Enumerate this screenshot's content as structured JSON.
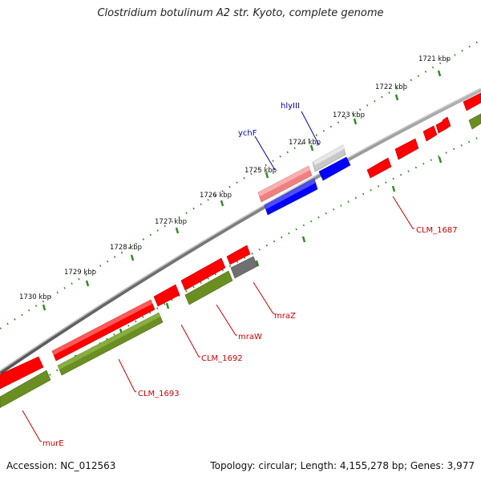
{
  "title": "Clostridium botulinum A2 str. Kyoto, complete genome",
  "footer": {
    "accession": "Accession: NC_012563",
    "summary": "Topology: circular; Length: 4,155,278 bp; Genes: 3,977"
  },
  "colors": {
    "backbone": "#8a8a8a",
    "tick": "#2e8b22",
    "cds_reverse": "#ff0000",
    "cds_forward_pink": "#f08080",
    "cds_forward_blue": "#0000ff",
    "cds_forward_gray": "#c8c8c8",
    "cds_dark_gray": "#707070",
    "gene_bar": "#6b8e23",
    "label_red": "#cc0000",
    "label_blue": "#0000aa"
  },
  "scale_labels": [
    "1721 kbp",
    "1722 kbp",
    "1723 kbp",
    "1724 kbp",
    "1725 kbp",
    "1726 kbp",
    "1727 kbp",
    "1728 kbp",
    "1729 kbp",
    "1730 kbp"
  ],
  "gene_labels": [
    {
      "text": "hlyIII",
      "strand": "forward"
    },
    {
      "text": "ychF",
      "strand": "forward"
    },
    {
      "text": "CLM_1687",
      "strand": "reverse"
    },
    {
      "text": "mraZ",
      "strand": "reverse"
    },
    {
      "text": "mraW",
      "strand": "reverse"
    },
    {
      "text": "CLM_1692",
      "strand": "reverse"
    },
    {
      "text": "CLM_1693",
      "strand": "reverse"
    },
    {
      "text": "murE",
      "strand": "reverse"
    }
  ]
}
